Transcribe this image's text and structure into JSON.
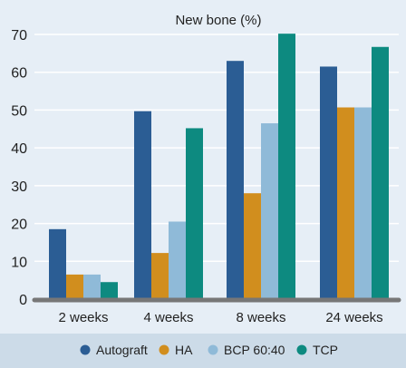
{
  "chart_data": {
    "type": "bar",
    "title": "New bone (%)",
    "categories": [
      "2 weeks",
      "4 weeks",
      "8 weeks",
      "24 weeks"
    ],
    "series": [
      {
        "name": "Autograft",
        "color": "#2b5d94",
        "values": [
          18.5,
          49.7,
          63.0,
          61.5
        ]
      },
      {
        "name": "HA",
        "color": "#d18e1e",
        "values": [
          6.5,
          12.2,
          28.0,
          50.7
        ]
      },
      {
        "name": "BCP 60:40",
        "color": "#8fbad8",
        "values": [
          6.5,
          20.5,
          46.5,
          50.7
        ]
      },
      {
        "name": "TCP",
        "color": "#0d8a80",
        "values": [
          4.5,
          45.2,
          70.2,
          66.7
        ]
      }
    ],
    "yticks": [
      0,
      10,
      20,
      30,
      40,
      50,
      60,
      70
    ],
    "ylim": [
      0,
      70
    ],
    "grid": true,
    "legend_position": "bottom"
  },
  "colors": {
    "plot_background": "#e6eef6",
    "legend_background": "#ccdbe8",
    "gridline": "#ffffff",
    "baseline": "#777777"
  }
}
